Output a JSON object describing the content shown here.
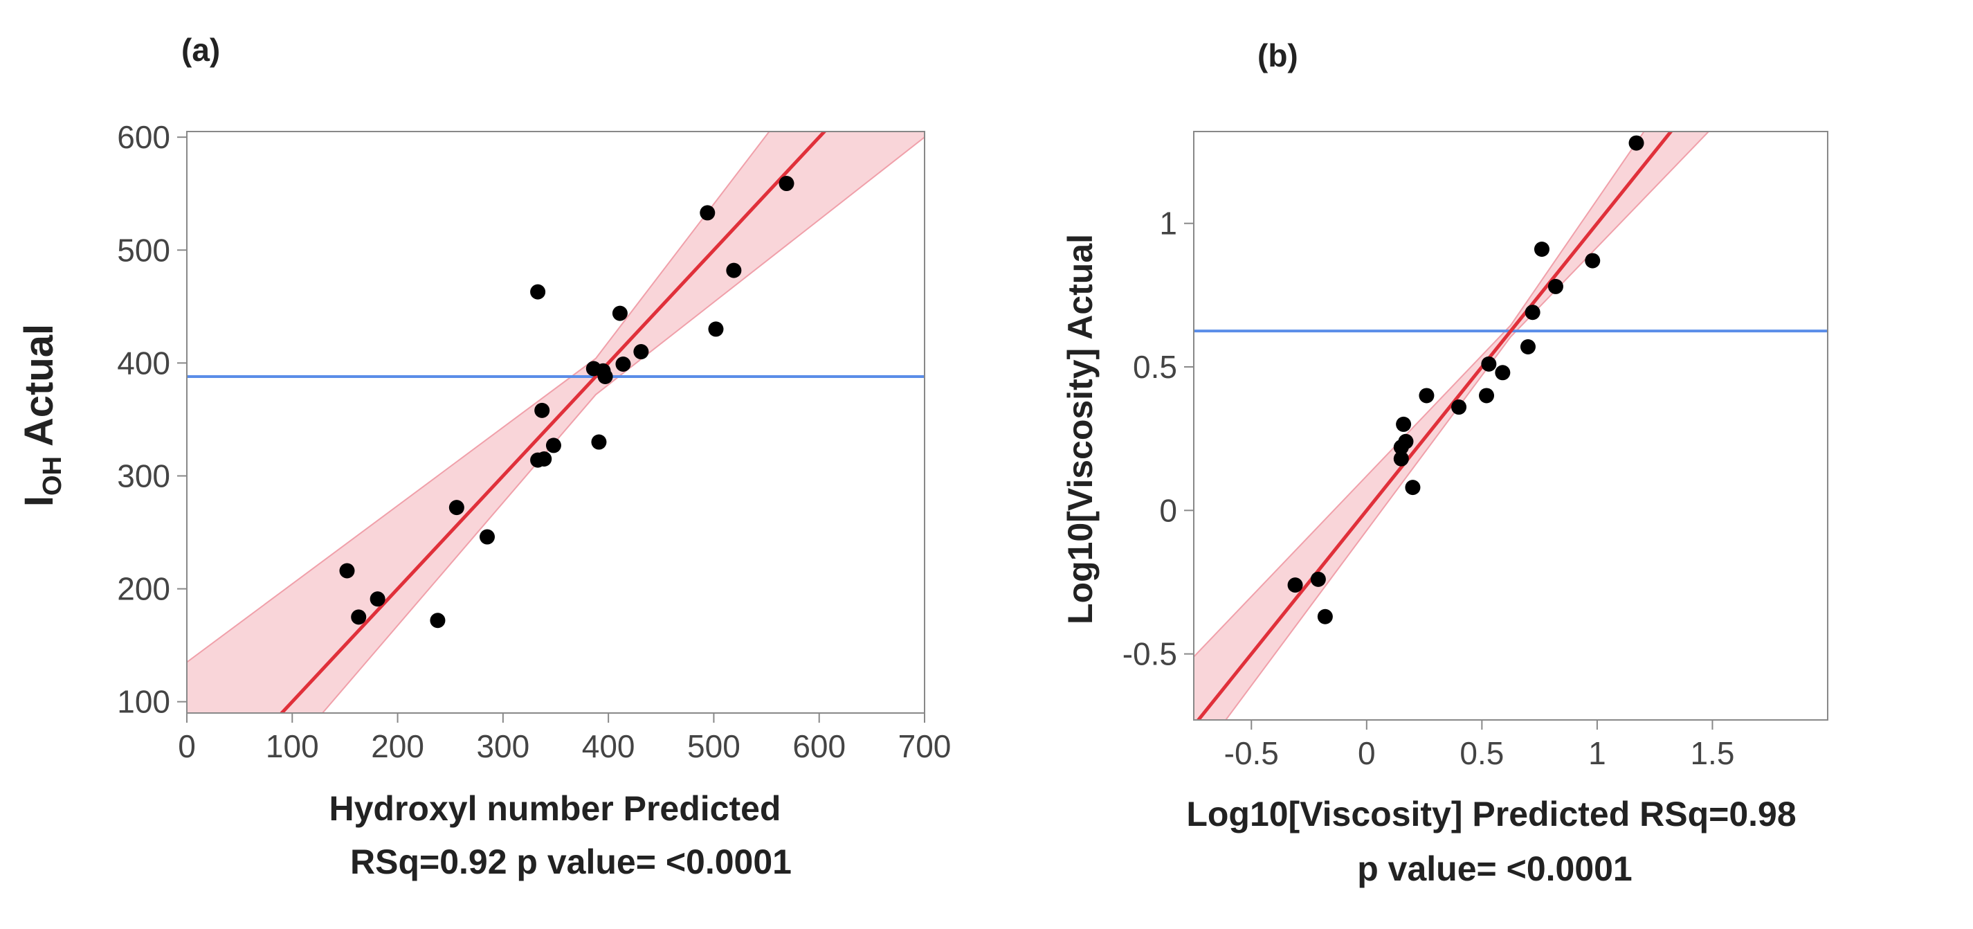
{
  "colors": {
    "fit_line": "#e0303a",
    "confidence_band": "#f7c7cc",
    "mean_line": "#5a8de8",
    "points": "#000000",
    "axis": "#888888"
  },
  "chart_data": [
    {
      "panel_label": "(a)",
      "type": "scatter",
      "xlabel": "Hydroxyl number Predicted",
      "ylabel_main": "I",
      "ylabel_sub": "OH",
      "ylabel_rest": " Actual",
      "stats_line": "RSq=0.92 p value= <0.0001",
      "xlim": [
        0,
        700
      ],
      "ylim": [
        90,
        605
      ],
      "xticks": [
        0,
        100,
        200,
        300,
        400,
        500,
        600,
        700
      ],
      "yticks": [
        100,
        200,
        300,
        400,
        500,
        600
      ],
      "mean_y": 388,
      "fit": {
        "slope": 1.0,
        "intercept": 0
      },
      "band": [
        {
          "x": 0,
          "lower": -50,
          "upper": 135
        },
        {
          "x": 388,
          "lower": 372,
          "upper": 404
        },
        {
          "x": 700,
          "lower": 600,
          "upper": 785
        }
      ],
      "points": [
        {
          "x": 152,
          "y": 216
        },
        {
          "x": 163,
          "y": 175
        },
        {
          "x": 181,
          "y": 191
        },
        {
          "x": 238,
          "y": 172
        },
        {
          "x": 256,
          "y": 272
        },
        {
          "x": 285,
          "y": 246
        },
        {
          "x": 333,
          "y": 314
        },
        {
          "x": 333,
          "y": 463
        },
        {
          "x": 337,
          "y": 358
        },
        {
          "x": 339,
          "y": 315
        },
        {
          "x": 348,
          "y": 327
        },
        {
          "x": 386,
          "y": 395
        },
        {
          "x": 391,
          "y": 330
        },
        {
          "x": 395,
          "y": 393
        },
        {
          "x": 397,
          "y": 388
        },
        {
          "x": 411,
          "y": 444
        },
        {
          "x": 414,
          "y": 399
        },
        {
          "x": 431,
          "y": 410
        },
        {
          "x": 494,
          "y": 533
        },
        {
          "x": 502,
          "y": 430
        },
        {
          "x": 519,
          "y": 482
        },
        {
          "x": 569,
          "y": 559
        }
      ]
    },
    {
      "panel_label": "(b)",
      "type": "scatter",
      "xlabel": "Log10[Viscosity] Predicted  RSq=0.98",
      "ylabel": "Log10[Viscosity] Actual",
      "stats_line": "p value= <0.0001",
      "xlim": [
        -0.75,
        2.0
      ],
      "ylim": [
        -0.73,
        1.32
      ],
      "xticks": [
        -0.5,
        0,
        0.5,
        1,
        1.5
      ],
      "xtick_labels": [
        "-0.5",
        "0",
        "0.5",
        "1",
        "1.5"
      ],
      "yticks": [
        -0.5,
        0,
        0.5,
        1
      ],
      "ytick_labels": [
        "-0.5",
        "0",
        "0.5",
        "1"
      ],
      "mean_y": 0.625,
      "fit": {
        "slope": 1.0,
        "intercept": 0
      },
      "band": [
        {
          "x": -0.75,
          "lower": -0.88,
          "upper": -0.51
        },
        {
          "x": 0.625,
          "lower": 0.605,
          "upper": 0.645
        },
        {
          "x": 2.0,
          "lower": 1.75,
          "upper": 2.25
        }
      ],
      "points": [
        {
          "x": -0.31,
          "y": -0.26
        },
        {
          "x": -0.21,
          "y": -0.24
        },
        {
          "x": -0.18,
          "y": -0.37
        },
        {
          "x": 0.15,
          "y": 0.18
        },
        {
          "x": 0.15,
          "y": 0.22
        },
        {
          "x": 0.16,
          "y": 0.3
        },
        {
          "x": 0.17,
          "y": 0.24
        },
        {
          "x": 0.2,
          "y": 0.08
        },
        {
          "x": 0.26,
          "y": 0.4
        },
        {
          "x": 0.4,
          "y": 0.36
        },
        {
          "x": 0.52,
          "y": 0.4
        },
        {
          "x": 0.53,
          "y": 0.51
        },
        {
          "x": 0.59,
          "y": 0.48
        },
        {
          "x": 0.7,
          "y": 0.57
        },
        {
          "x": 0.72,
          "y": 0.69
        },
        {
          "x": 0.76,
          "y": 0.91
        },
        {
          "x": 0.82,
          "y": 0.78
        },
        {
          "x": 0.98,
          "y": 0.87
        },
        {
          "x": 1.17,
          "y": 1.28
        }
      ]
    }
  ]
}
